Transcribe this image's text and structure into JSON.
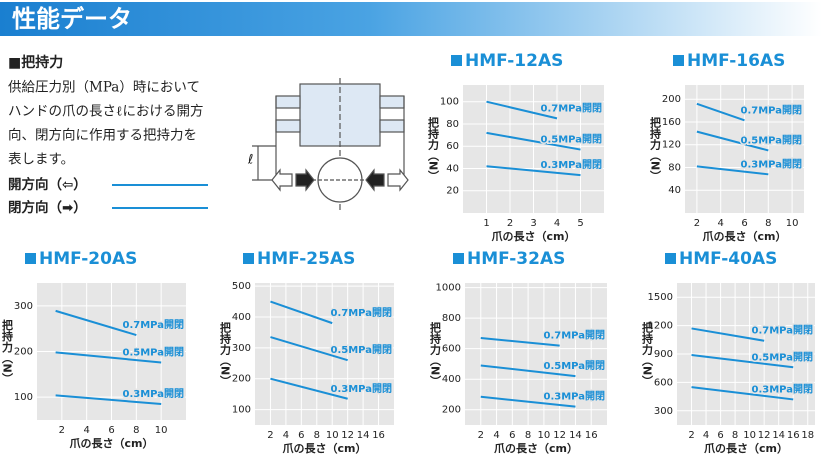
{
  "header": {
    "title": "性能データ"
  },
  "section": {
    "title": "■把持力",
    "description": [
      "供給圧力別（MPa）時において",
      "ハンドの爪の長さℓにおける開方",
      "向、閉方向に作用する把持力を",
      "表します。"
    ],
    "legend": [
      "開方向（⇦）",
      "閉方向（➡）"
    ]
  },
  "diagram": {
    "label": "ℓ"
  },
  "chart_data": [
    {
      "type": "line",
      "title": "HMF-12AS",
      "x_label": "爪の長さ（cm）",
      "y_label": "把持力（N）",
      "grid": true,
      "xlim": [
        0,
        6
      ],
      "xticks": [
        1,
        2,
        3,
        4,
        5
      ],
      "ylim": [
        0,
        115
      ],
      "yticks": [
        20,
        40,
        60,
        80,
        100
      ],
      "series": [
        {
          "name": "0.7MPa開閉",
          "color": "#1a8fd6",
          "x": [
            1,
            4
          ],
          "values": [
            100,
            85
          ]
        },
        {
          "name": "0.5MPa開閉",
          "color": "#1a8fd6",
          "x": [
            1,
            5
          ],
          "values": [
            72,
            57
          ]
        },
        {
          "name": "0.3MPa開閉",
          "color": "#1a8fd6",
          "x": [
            1,
            5
          ],
          "values": [
            42,
            34
          ]
        }
      ]
    },
    {
      "type": "line",
      "title": "HMF-16AS",
      "x_label": "爪の長さ（cm）",
      "y_label": "把持力（N）",
      "grid": true,
      "xlim": [
        1,
        11
      ],
      "xticks": [
        2,
        4,
        6,
        8,
        10
      ],
      "ylim": [
        0,
        225
      ],
      "yticks": [
        40,
        80,
        120,
        160,
        200
      ],
      "series": [
        {
          "name": "0.7MPa開閉",
          "color": "#1a8fd6",
          "x": [
            2,
            6
          ],
          "values": [
            192,
            163
          ]
        },
        {
          "name": "0.5MPa開閉",
          "color": "#1a8fd6",
          "x": [
            2,
            8
          ],
          "values": [
            143,
            110
          ]
        },
        {
          "name": "0.3MPa開閉",
          "color": "#1a8fd6",
          "x": [
            2,
            8
          ],
          "values": [
            82,
            68
          ]
        }
      ]
    },
    {
      "type": "line",
      "title": "HMF-20AS",
      "x_label": "爪の長さ（cm）",
      "y_label": "把持力（N）",
      "grid": true,
      "xlim": [
        0,
        12
      ],
      "xticks": [
        2,
        4,
        6,
        8,
        10
      ],
      "ylim": [
        50,
        350
      ],
      "yticks": [
        100,
        200,
        300
      ],
      "series": [
        {
          "name": "0.7MPa開閉",
          "color": "#1a8fd6",
          "x": [
            1.5,
            8
          ],
          "values": [
            289,
            236
          ]
        },
        {
          "name": "0.5MPa開閉",
          "color": "#1a8fd6",
          "x": [
            1.5,
            10
          ],
          "values": [
            198,
            176
          ]
        },
        {
          "name": "0.3MPa開閉",
          "color": "#1a8fd6",
          "x": [
            1.5,
            10
          ],
          "values": [
            104,
            85
          ]
        }
      ]
    },
    {
      "type": "line",
      "title": "HMF-25AS",
      "x_label": "爪の長さ（cm）",
      "y_label": "把持力（N）",
      "grid": true,
      "xlim": [
        0,
        18
      ],
      "xticks": [
        2,
        4,
        6,
        8,
        10,
        12,
        14,
        16
      ],
      "ylim": [
        50,
        510
      ],
      "yticks": [
        100,
        200,
        300,
        400,
        500
      ],
      "series": [
        {
          "name": "0.7MPa開閉",
          "color": "#1a8fd6",
          "x": [
            2,
            10
          ],
          "values": [
            450,
            380
          ]
        },
        {
          "name": "0.5MPa開閉",
          "color": "#1a8fd6",
          "x": [
            2,
            12
          ],
          "values": [
            335,
            260
          ]
        },
        {
          "name": "0.3MPa開閉",
          "color": "#1a8fd6",
          "x": [
            2,
            12
          ],
          "values": [
            200,
            135
          ]
        }
      ]
    },
    {
      "type": "line",
      "title": "HMF-32AS",
      "x_label": "爪の長さ（cm）",
      "y_label": "把持力（N）",
      "grid": true,
      "xlim": [
        0,
        18
      ],
      "xticks": [
        2,
        4,
        6,
        8,
        10,
        12,
        14,
        16
      ],
      "ylim": [
        100,
        1030
      ],
      "yticks": [
        200,
        400,
        600,
        800,
        1000
      ],
      "series": [
        {
          "name": "0.7MPa開閉",
          "color": "#1a8fd6",
          "x": [
            2,
            12
          ],
          "values": [
            670,
            620
          ]
        },
        {
          "name": "0.5MPa開閉",
          "color": "#1a8fd6",
          "x": [
            2,
            14
          ],
          "values": [
            490,
            420
          ]
        },
        {
          "name": "0.3MPa開閉",
          "color": "#1a8fd6",
          "x": [
            2,
            14
          ],
          "values": [
            285,
            220
          ]
        }
      ]
    },
    {
      "type": "line",
      "title": "HMF-40AS",
      "x_label": "爪の長さ（cm）",
      "y_label": "把持力（N）",
      "grid": true,
      "xlim": [
        0,
        19
      ],
      "xticks": [
        2,
        4,
        6,
        8,
        10,
        12,
        14,
        16,
        18
      ],
      "ylim": [
        150,
        1650
      ],
      "yticks": [
        300,
        600,
        900,
        1200,
        1500
      ],
      "series": [
        {
          "name": "0.7MPa開閉",
          "color": "#1a8fd6",
          "x": [
            2,
            12
          ],
          "values": [
            1170,
            1040
          ]
        },
        {
          "name": "0.5MPa開閉",
          "color": "#1a8fd6",
          "x": [
            2,
            16
          ],
          "values": [
            890,
            760
          ]
        },
        {
          "name": "0.3MPa開閉",
          "color": "#1a8fd6",
          "x": [
            2,
            16
          ],
          "values": [
            550,
            420
          ]
        }
      ]
    }
  ]
}
